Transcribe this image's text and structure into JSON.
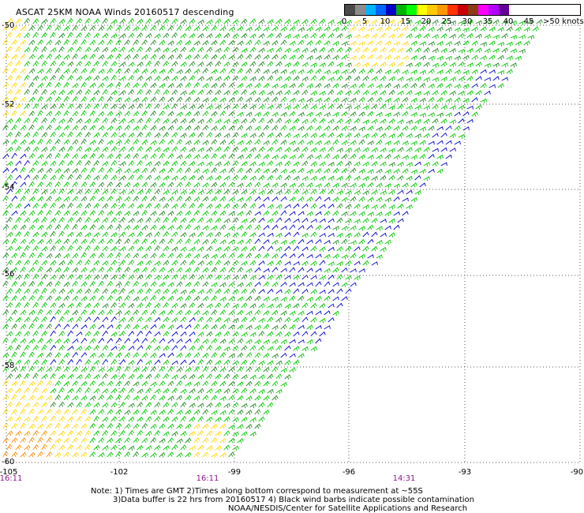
{
  "title": "ASCAT 25KM NOAA Winds 20160517 descending",
  "legend": {
    "labels": [
      "0",
      "5",
      "10",
      "15",
      "20",
      "25",
      "30",
      "35",
      "40",
      "45",
      ">50 knots"
    ],
    "colors": [
      "#4a4a4a",
      "#8c8c8c",
      "#00b4ff",
      "#0064ff",
      "#0000c8",
      "#00b400",
      "#00ff00",
      "#ffff00",
      "#ffc800",
      "#ff9600",
      "#ff3200",
      "#c80000",
      "#8c3c14",
      "#ff00ff",
      "#b400ff",
      "#640096"
    ],
    "barb_colors": {
      "calm": "#0000c8",
      "moderate": "#00c800",
      "fresh": "#228b22",
      "strong": "#ffd700",
      "gale": "#ff8c00"
    }
  },
  "axes": {
    "lat_labels": [
      "-50",
      "-52",
      "-54",
      "-56",
      "-58",
      "-60"
    ],
    "lon_labels": [
      "-105",
      "-102",
      "-99",
      "-96",
      "-93",
      "-90"
    ]
  },
  "times": [
    "16:11",
    "16:11",
    "14:31"
  ],
  "notes": [
    "Note: 1) Times are GMT 2)Times along bottom correspond to measurement at ~55S",
    "3)Data buffer is 22 hrs from 20160517 4) Black wind barbs indicate possible contamination",
    "NOAA/NESDIS/Center for Satellite Applications and Research"
  ]
}
